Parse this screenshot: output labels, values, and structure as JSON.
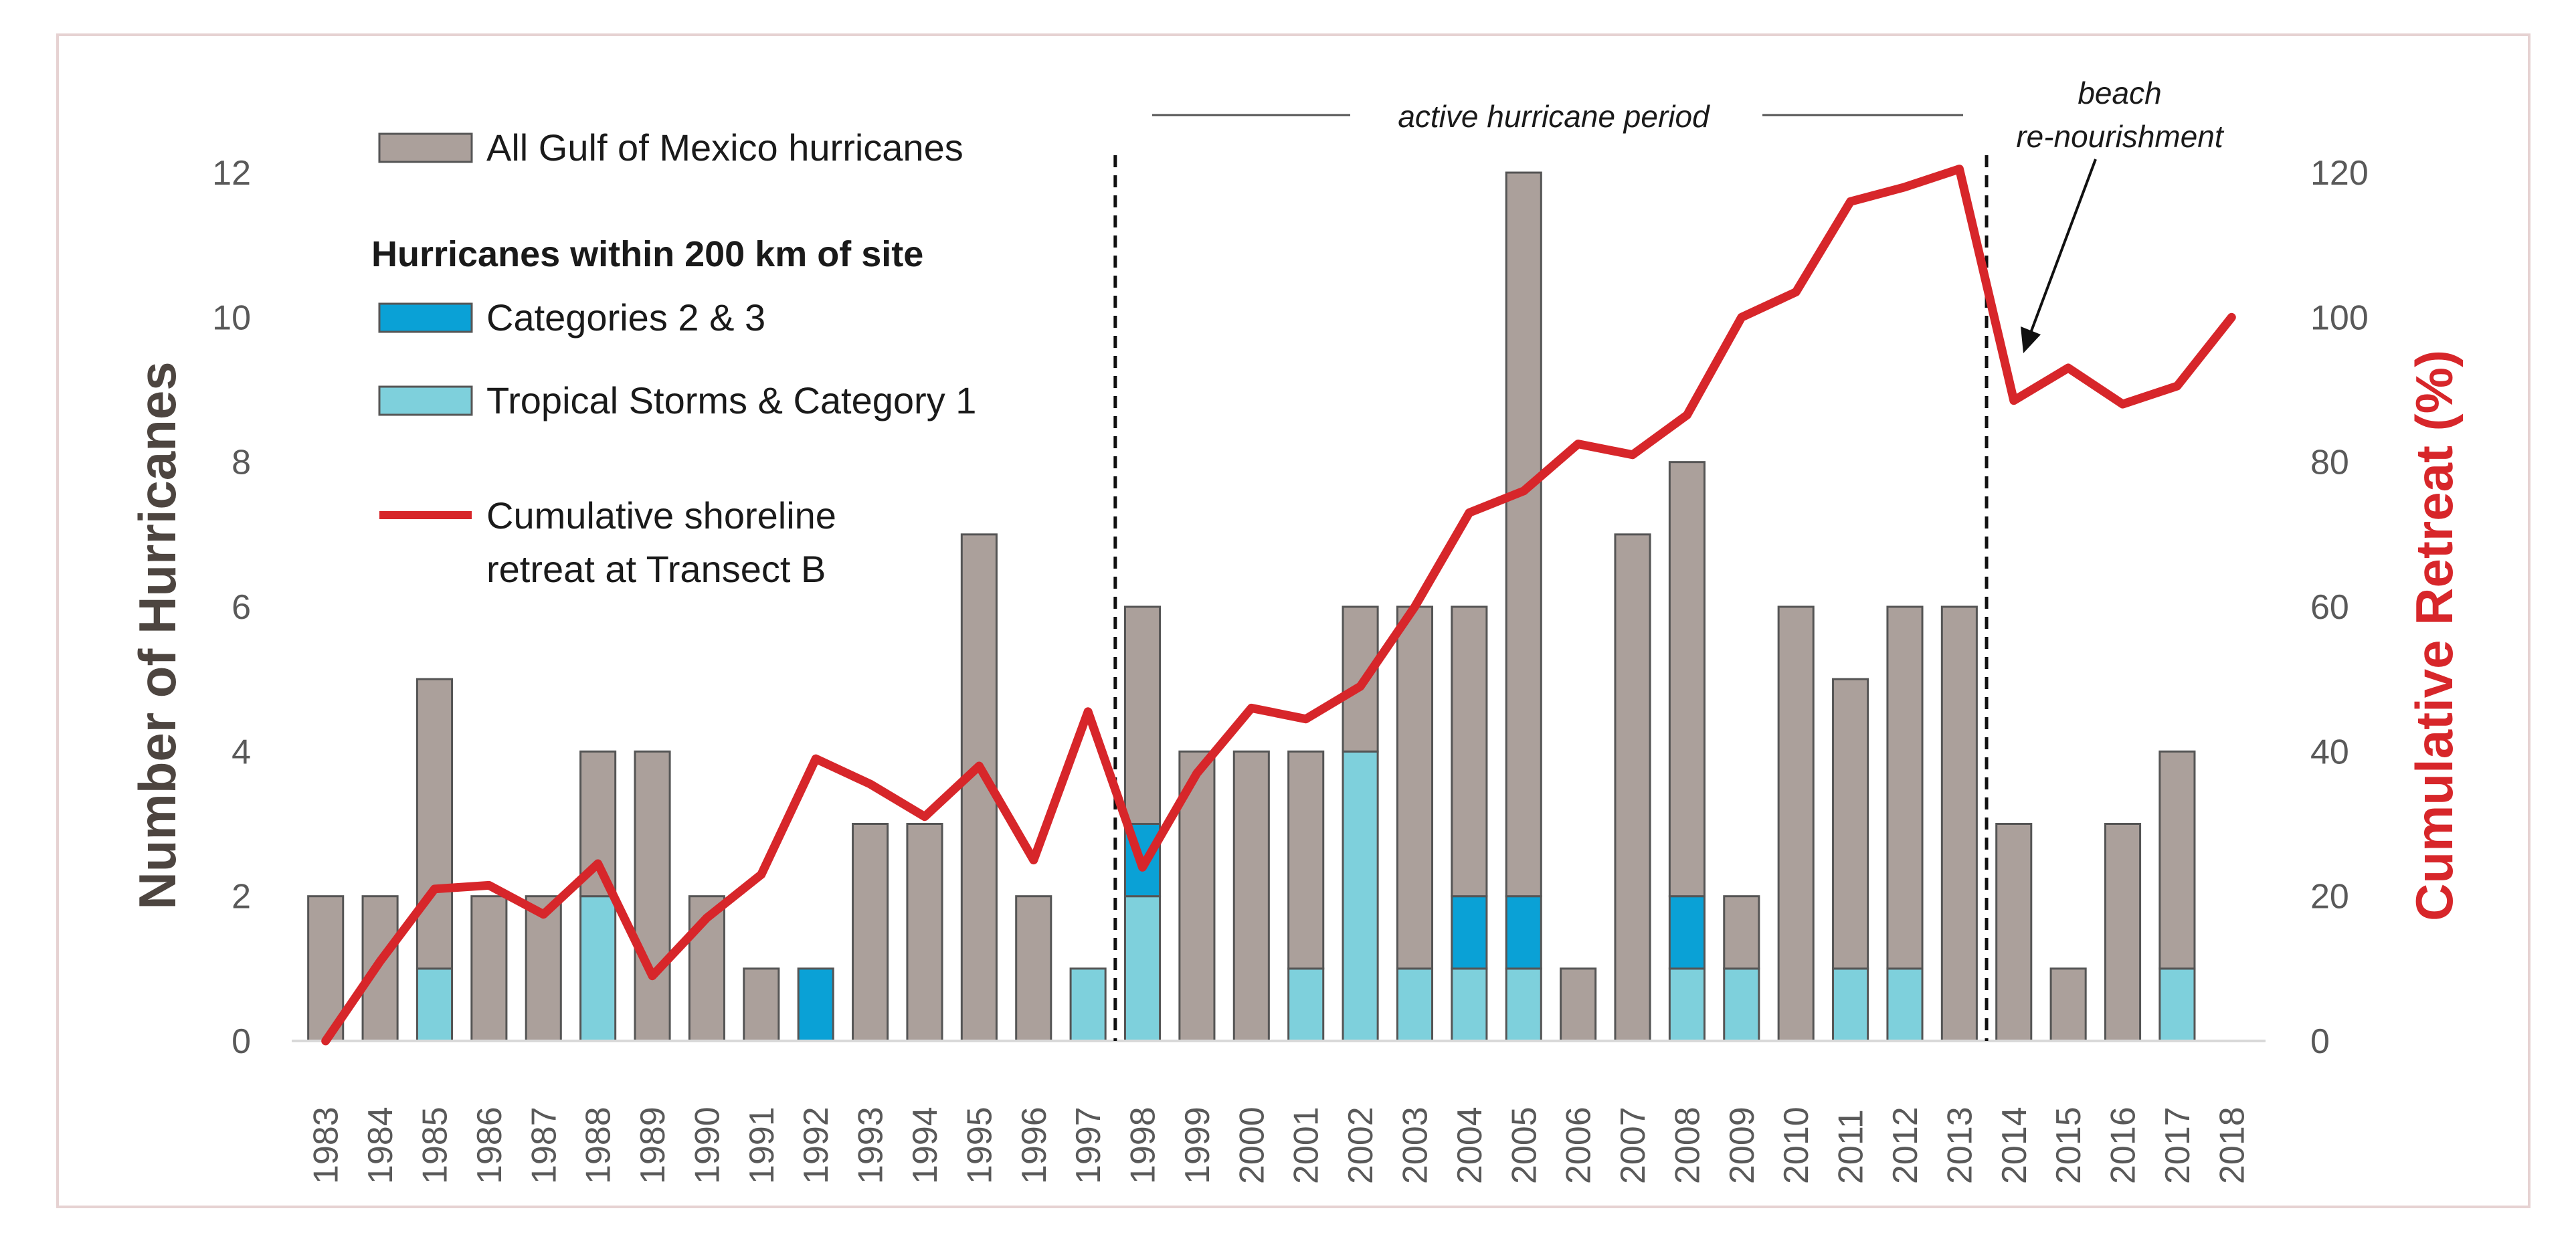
{
  "chart_data": {
    "type": "bar",
    "categories": [
      "1983",
      "1984",
      "1985",
      "1986",
      "1987",
      "1988",
      "1989",
      "1990",
      "1991",
      "1992",
      "1993",
      "1994",
      "1995",
      "1996",
      "1997",
      "1998",
      "1999",
      "2000",
      "2001",
      "2002",
      "2003",
      "2004",
      "2005",
      "2006",
      "2007",
      "2008",
      "2009",
      "2010",
      "2011",
      "2012",
      "2013",
      "2014",
      "2015",
      "2016",
      "2017",
      "2018"
    ],
    "series": [
      {
        "name": "All Gulf of Mexico hurricanes",
        "color": "#aba09b",
        "values": [
          2,
          2,
          5,
          2,
          2,
          4,
          4,
          2,
          1,
          1,
          3,
          3,
          7,
          2,
          1,
          6,
          4,
          4,
          4,
          6,
          6,
          6,
          12,
          1,
          7,
          8,
          2,
          6,
          5,
          6,
          6,
          3,
          1,
          3,
          4,
          null
        ]
      },
      {
        "name": "Categories 2 & 3",
        "color": "#0aa1d6",
        "values": [
          0,
          0,
          0,
          0,
          0,
          0,
          0,
          0,
          0,
          1,
          0,
          0,
          0,
          0,
          0,
          1,
          0,
          0,
          0,
          0,
          0,
          1,
          1,
          0,
          0,
          1,
          0,
          0,
          0,
          0,
          0,
          0,
          0,
          0,
          0,
          null
        ]
      },
      {
        "name": "Tropical Storms & Category 1",
        "color": "#7ed0dc",
        "values": [
          0,
          0,
          1,
          0,
          0,
          2,
          0,
          0,
          0,
          0,
          0,
          0,
          0,
          0,
          1,
          2,
          0,
          0,
          1,
          4,
          1,
          1,
          1,
          0,
          0,
          1,
          1,
          0,
          1,
          1,
          0,
          0,
          0,
          0,
          1,
          null
        ]
      },
      {
        "name": "Cumulative shoreline retreat at Transect B",
        "color": "#d7262a",
        "type": "line",
        "axis": "right",
        "values": [
          0,
          11,
          21,
          21.5,
          17.5,
          24.5,
          9,
          17,
          23,
          39,
          35.5,
          31,
          38,
          25,
          45.5,
          24,
          37,
          46,
          44.5,
          49,
          60,
          73,
          76,
          82.5,
          81,
          86.5,
          100,
          103.5,
          116,
          118,
          120.5,
          88.5,
          93,
          88,
          90.5,
          100
        ]
      }
    ],
    "ylabel": "Number of Hurricanes",
    "ylabel_right": "Cumulative Retreat (%)",
    "ylim": [
      0,
      12
    ],
    "ylim_right": [
      0,
      120
    ],
    "yticks": [
      "0",
      "2",
      "4",
      "6",
      "8",
      "10",
      "12"
    ],
    "yticks_right": [
      "0",
      "20",
      "40",
      "60",
      "80",
      "100",
      "120"
    ],
    "legend": {
      "header": "Hurricanes within 200 km of site",
      "entries": [
        "All Gulf of Mexico hurricanes",
        "Categories 2 & 3",
        "Tropical Storms & Category 1"
      ],
      "line_entry": [
        "Cumulative shoreline",
        "retreat at Transect B"
      ]
    },
    "annotations": {
      "active_period": "active hurricane period",
      "active_period_start": "1998",
      "active_period_end": "2014",
      "nourish_line1": "beach",
      "nourish_line2": "re-nourishment",
      "nourish_year": "2014"
    }
  }
}
